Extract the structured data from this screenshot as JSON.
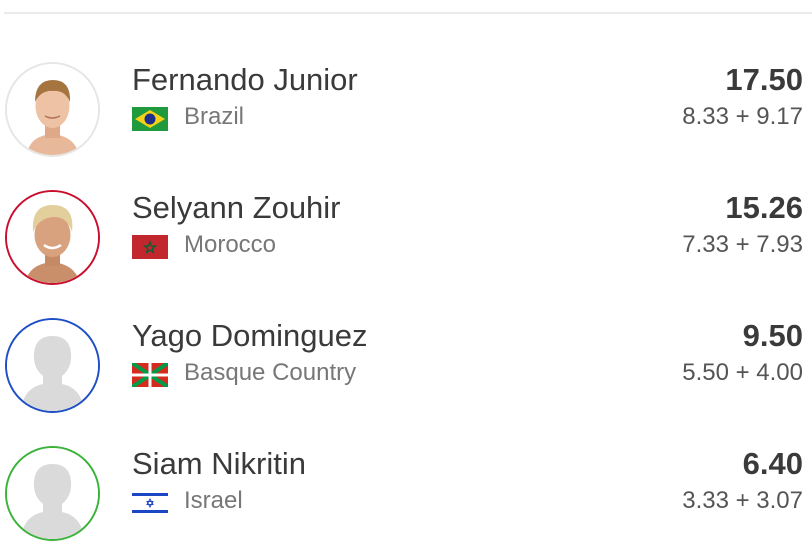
{
  "athletes": [
    {
      "name": "Fernando Junior",
      "country": "Brazil",
      "flag_icon": "brazil-flag",
      "total": "17.50",
      "waves": "8.33 + 9.17",
      "ring_color": "#e6e6e6",
      "photo": true
    },
    {
      "name": "Selyann Zouhir",
      "country": "Morocco",
      "flag_icon": "morocco-flag",
      "total": "15.26",
      "waves": "7.33 + 7.93",
      "ring_color": "#c8102e",
      "photo": true
    },
    {
      "name": "Yago Dominguez",
      "country": "Basque Country",
      "flag_icon": "basque-flag",
      "total": "9.50",
      "waves": "5.50 + 4.00",
      "ring_color": "#1f4fc4",
      "photo": false
    },
    {
      "name": "Siam Nikritin",
      "country": "Israel",
      "flag_icon": "israel-flag",
      "total": "6.40",
      "waves": "3.33 + 3.07",
      "ring_color": "#3bb33b",
      "photo": false
    }
  ]
}
